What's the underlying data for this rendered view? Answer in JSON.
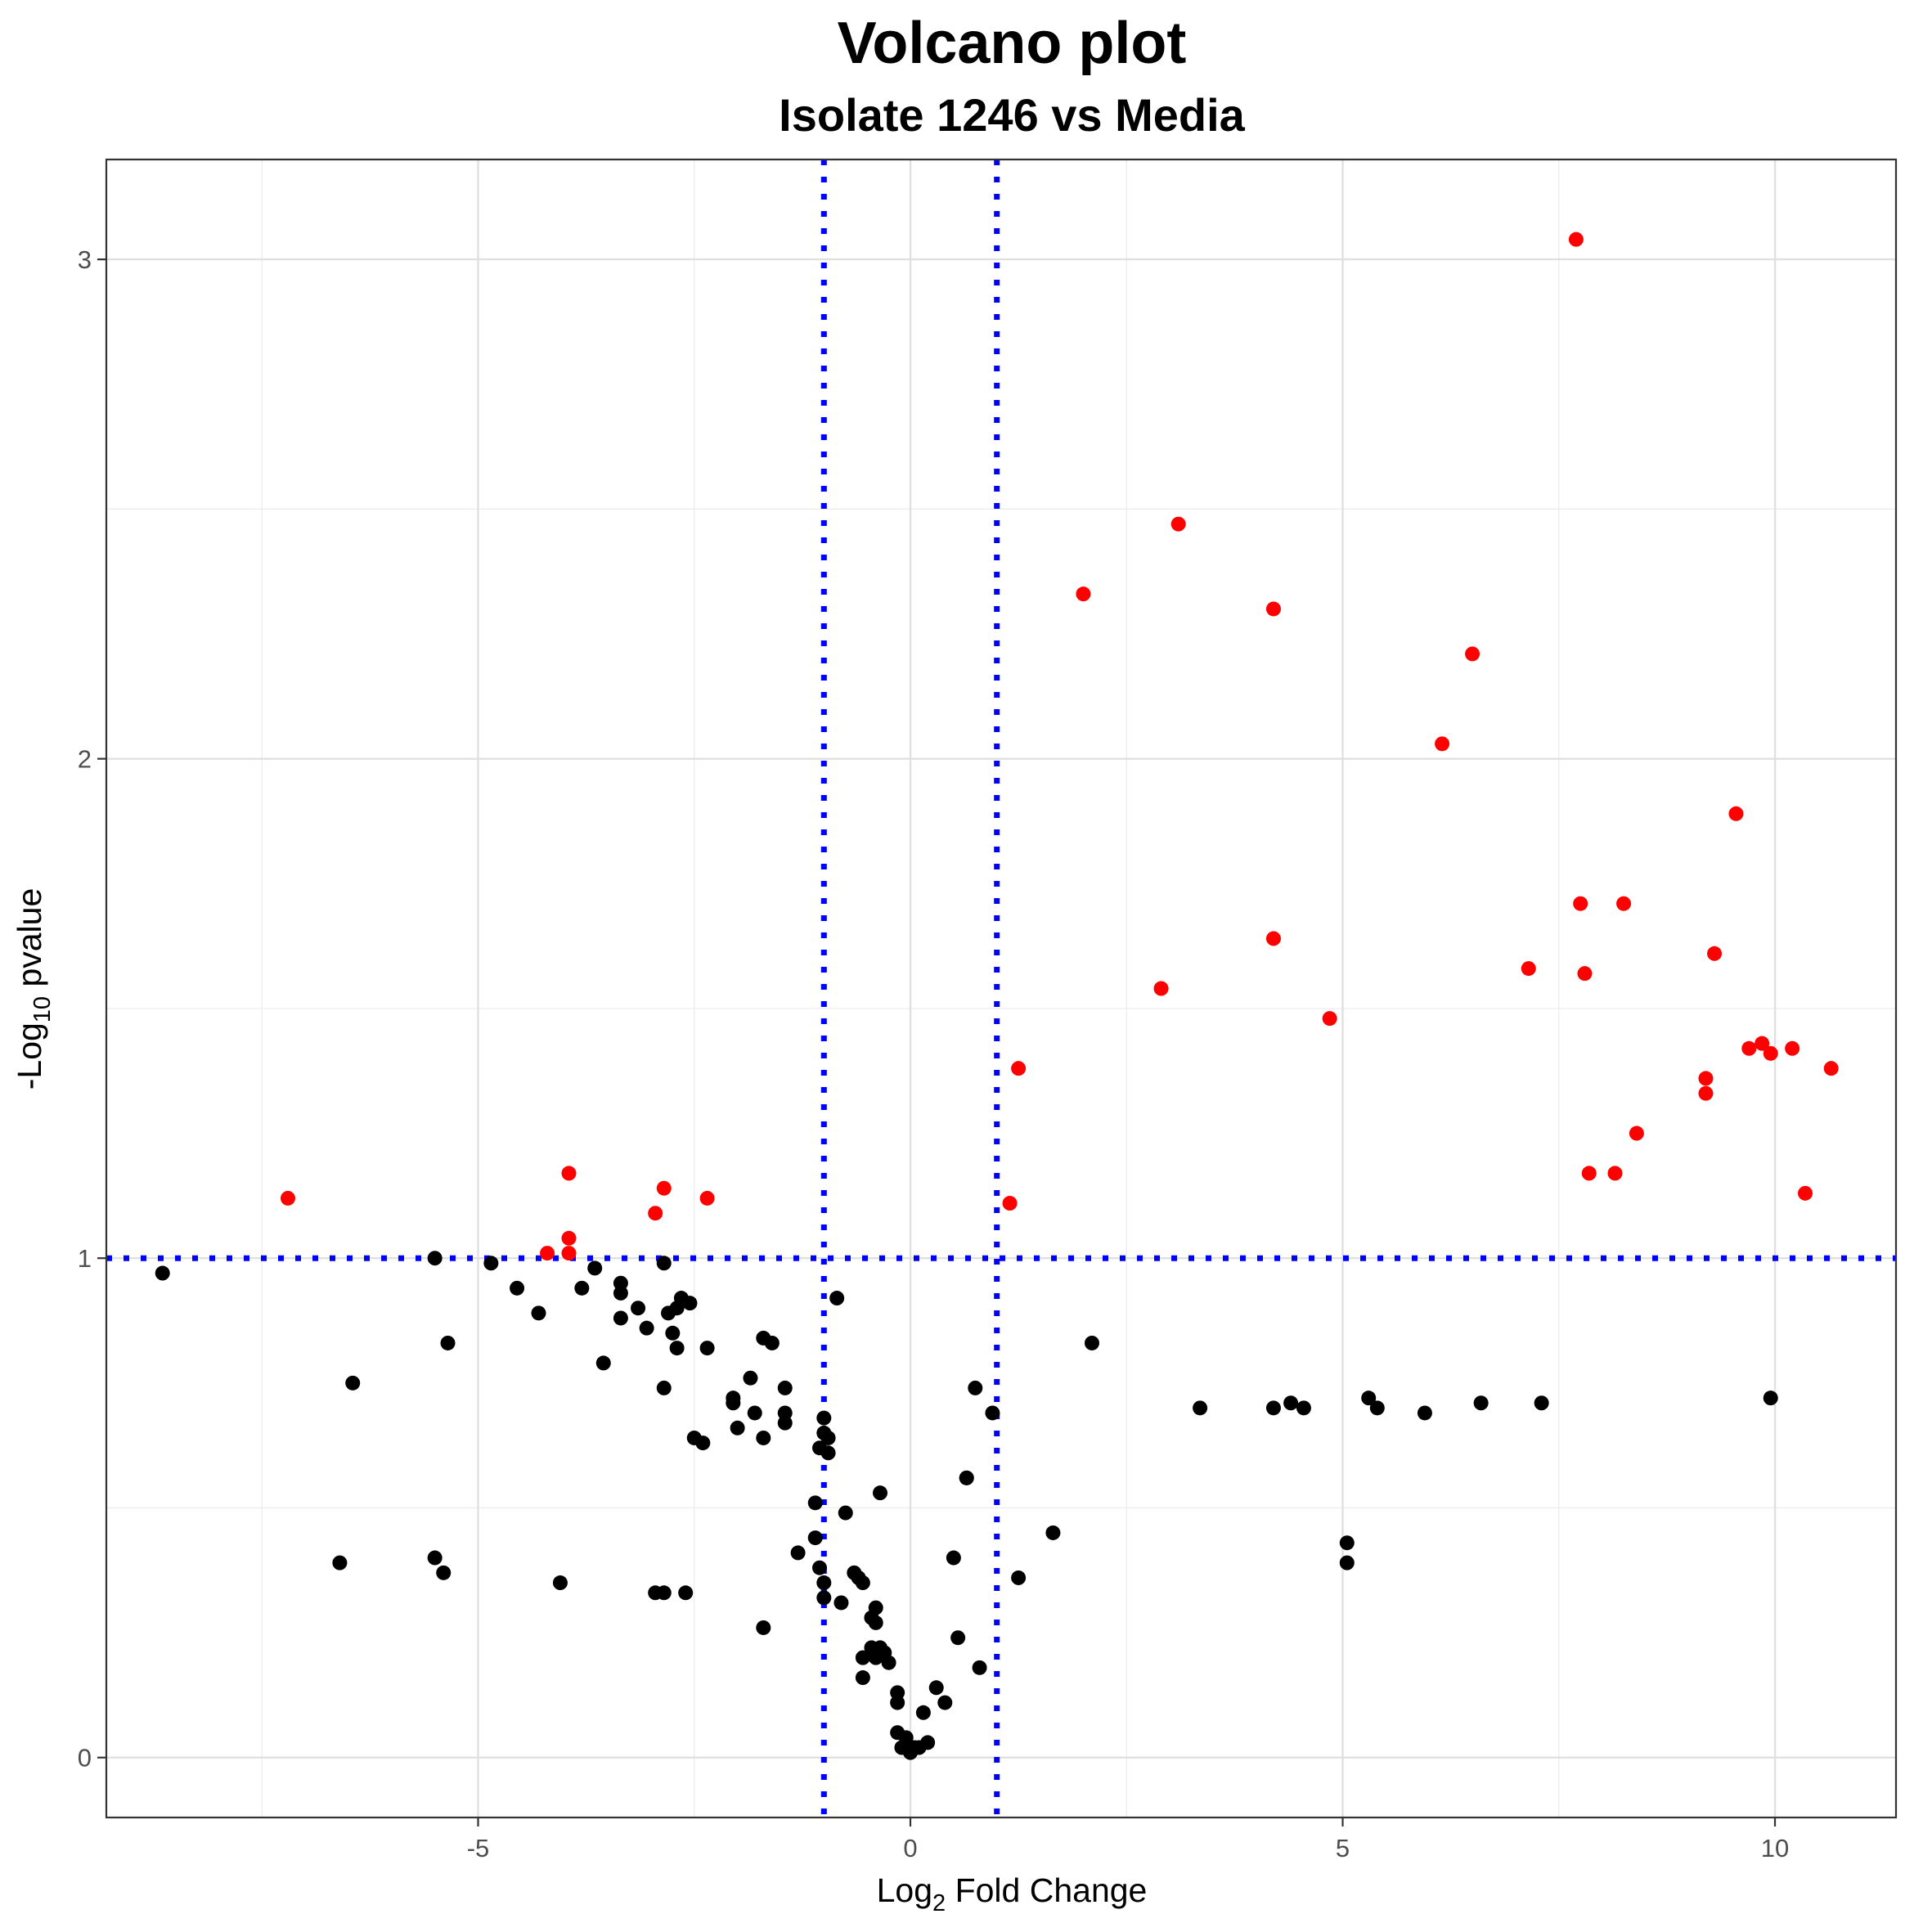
{
  "chart_data": {
    "type": "scatter",
    "title": "Volcano plot",
    "subtitle": "Isolate 1246 vs Media",
    "xlabel": {
      "prefix": "Log",
      "subscript": "2",
      "suffix": " Fold Change"
    },
    "ylabel": {
      "prefix": "-Log",
      "subscript": "10",
      "suffix": " pvalue"
    },
    "xlim": [
      -9.3,
      11.4
    ],
    "ylim": [
      -0.12,
      3.2
    ],
    "x_ticks": [
      -5,
      0,
      5,
      10
    ],
    "x_tick_labels": [
      "-5",
      "0",
      "5",
      "10"
    ],
    "y_ticks": [
      0,
      1,
      2,
      3
    ],
    "y_tick_labels": [
      "0",
      "1",
      "2",
      "3"
    ],
    "grid": true,
    "legend": "none",
    "thresholds": {
      "vlines": [
        -1,
        1
      ],
      "hlines": [
        1
      ],
      "color": "#0000ff",
      "style": "dotted"
    },
    "series": [
      {
        "color": "#ff0000",
        "points": [
          [
            7.7,
            3.04
          ],
          [
            3.1,
            2.47
          ],
          [
            2.0,
            2.33
          ],
          [
            4.2,
            2.3
          ],
          [
            6.5,
            2.21
          ],
          [
            6.15,
            2.03
          ],
          [
            9.55,
            1.89
          ],
          [
            7.75,
            1.71
          ],
          [
            8.25,
            1.71
          ],
          [
            4.2,
            1.64
          ],
          [
            9.3,
            1.61
          ],
          [
            7.15,
            1.58
          ],
          [
            7.8,
            1.57
          ],
          [
            2.9,
            1.54
          ],
          [
            4.85,
            1.48
          ],
          [
            9.7,
            1.42
          ],
          [
            9.85,
            1.43
          ],
          [
            9.95,
            1.41
          ],
          [
            10.2,
            1.42
          ],
          [
            1.25,
            1.38
          ],
          [
            10.65,
            1.38
          ],
          [
            9.2,
            1.36
          ],
          [
            9.2,
            1.33
          ],
          [
            8.4,
            1.25
          ],
          [
            7.85,
            1.17
          ],
          [
            8.15,
            1.17
          ],
          [
            10.35,
            1.13
          ],
          [
            1.15,
            1.11
          ],
          [
            -7.2,
            1.12
          ],
          [
            -2.35,
            1.12
          ],
          [
            -2.85,
            1.14
          ],
          [
            -3.95,
            1.17
          ],
          [
            -2.95,
            1.09
          ],
          [
            -3.95,
            1.04
          ],
          [
            -3.95,
            1.01
          ],
          [
            -4.2,
            1.01
          ]
        ]
      },
      {
        "color": "#000000",
        "points": [
          [
            -8.65,
            0.97
          ],
          [
            -5.5,
            1.0
          ],
          [
            -4.85,
            0.99
          ],
          [
            -4.55,
            0.94
          ],
          [
            -4.3,
            0.89
          ],
          [
            -5.35,
            0.83
          ],
          [
            -6.45,
            0.75
          ],
          [
            -3.65,
            0.98
          ],
          [
            -3.8,
            0.94
          ],
          [
            -3.35,
            0.95
          ],
          [
            -3.35,
            0.93
          ],
          [
            -3.35,
            0.88
          ],
          [
            -3.15,
            0.9
          ],
          [
            -3.05,
            0.86
          ],
          [
            -2.85,
            0.99
          ],
          [
            -2.65,
            0.92
          ],
          [
            -2.55,
            0.91
          ],
          [
            -2.7,
            0.9
          ],
          [
            -2.8,
            0.89
          ],
          [
            -2.75,
            0.85
          ],
          [
            -2.7,
            0.82
          ],
          [
            -2.35,
            0.82
          ],
          [
            -3.55,
            0.79
          ],
          [
            -2.85,
            0.74
          ],
          [
            -1.7,
            0.84
          ],
          [
            -1.6,
            0.83
          ],
          [
            -1.85,
            0.76
          ],
          [
            -1.45,
            0.74
          ],
          [
            -2.05,
            0.72
          ],
          [
            -2.05,
            0.71
          ],
          [
            -1.8,
            0.69
          ],
          [
            -1.45,
            0.69
          ],
          [
            -1.45,
            0.67
          ],
          [
            -2.0,
            0.66
          ],
          [
            -1.7,
            0.64
          ],
          [
            -2.5,
            0.64
          ],
          [
            -2.4,
            0.63
          ],
          [
            -1.0,
            0.68
          ],
          [
            -1.0,
            0.65
          ],
          [
            -0.95,
            0.64
          ],
          [
            -1.05,
            0.62
          ],
          [
            -0.95,
            0.61
          ],
          [
            -0.85,
            0.92
          ],
          [
            -1.1,
            0.51
          ],
          [
            -0.75,
            0.49
          ],
          [
            -0.35,
            0.53
          ],
          [
            -1.1,
            0.44
          ],
          [
            -1.3,
            0.41
          ],
          [
            -1.05,
            0.38
          ],
          [
            -0.65,
            0.37
          ],
          [
            -1.0,
            0.35
          ],
          [
            -0.6,
            0.36
          ],
          [
            -0.55,
            0.35
          ],
          [
            -1.0,
            0.32
          ],
          [
            -0.8,
            0.31
          ],
          [
            -0.4,
            0.3
          ],
          [
            -0.45,
            0.28
          ],
          [
            -0.4,
            0.27
          ],
          [
            -1.7,
            0.26
          ],
          [
            -0.45,
            0.22
          ],
          [
            -0.35,
            0.22
          ],
          [
            -0.3,
            0.21
          ],
          [
            -0.55,
            0.2
          ],
          [
            -0.4,
            0.2
          ],
          [
            -0.25,
            0.19
          ],
          [
            -0.55,
            0.16
          ],
          [
            -0.15,
            0.13
          ],
          [
            -0.15,
            0.11
          ],
          [
            0.3,
            0.14
          ],
          [
            0.4,
            0.11
          ],
          [
            0.15,
            0.09
          ],
          [
            -0.15,
            0.05
          ],
          [
            -0.05,
            0.04
          ],
          [
            0.2,
            0.03
          ],
          [
            -0.1,
            0.02
          ],
          [
            0.05,
            0.02
          ],
          [
            0.1,
            0.02
          ],
          [
            0.0,
            0.01
          ],
          [
            0.75,
            0.74
          ],
          [
            0.95,
            0.69
          ],
          [
            0.65,
            0.56
          ],
          [
            0.65,
            0.56
          ],
          [
            0.5,
            0.4
          ],
          [
            0.55,
            0.24
          ],
          [
            0.8,
            0.18
          ],
          [
            1.25,
            0.36
          ],
          [
            1.65,
            0.45
          ],
          [
            2.1,
            0.83
          ],
          [
            3.35,
            0.7
          ],
          [
            4.2,
            0.7
          ],
          [
            4.4,
            0.71
          ],
          [
            4.55,
            0.7
          ],
          [
            5.3,
            0.72
          ],
          [
            5.4,
            0.7
          ],
          [
            5.95,
            0.69
          ],
          [
            6.6,
            0.71
          ],
          [
            7.3,
            0.71
          ],
          [
            9.95,
            0.72
          ],
          [
            5.05,
            0.43
          ],
          [
            5.05,
            0.39
          ],
          [
            -6.6,
            0.39
          ],
          [
            -5.5,
            0.4
          ],
          [
            -5.4,
            0.37
          ],
          [
            -4.05,
            0.35
          ],
          [
            -2.95,
            0.33
          ],
          [
            -2.85,
            0.33
          ],
          [
            -2.6,
            0.33
          ]
        ]
      }
    ]
  }
}
